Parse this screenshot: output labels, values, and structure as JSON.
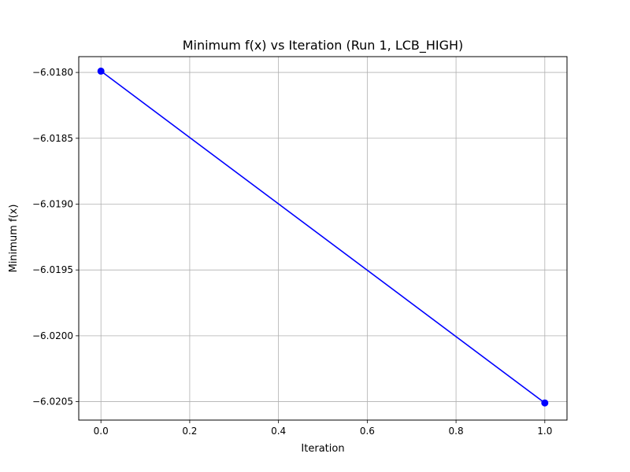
{
  "chart_data": {
    "type": "line",
    "title": "Minimum f(x) vs Iteration (Run 1, LCB_HIGH)",
    "xlabel": "Iteration",
    "ylabel": "Minimum f(x)",
    "xlim": [
      -0.05,
      1.05
    ],
    "ylim": [
      -6.02064,
      -6.01788
    ],
    "x_ticks": [
      0.0,
      0.2,
      0.4,
      0.6,
      0.8,
      1.0
    ],
    "x_tick_labels": [
      "0.0",
      "0.2",
      "0.4",
      "0.6",
      "0.8",
      "1.0"
    ],
    "y_ticks": [
      -6.018,
      -6.0185,
      -6.019,
      -6.0195,
      -6.02,
      -6.0205
    ],
    "y_tick_labels": [
      "−6.0180",
      "−6.0185",
      "−6.0190",
      "−6.0195",
      "−6.0200",
      "−6.0205"
    ],
    "grid": true,
    "legend": "none",
    "series": [
      {
        "x": [
          0,
          1
        ],
        "values": [
          -6.01799,
          -6.02051
        ],
        "color": "#0000ff",
        "marker": "circle"
      }
    ]
  }
}
